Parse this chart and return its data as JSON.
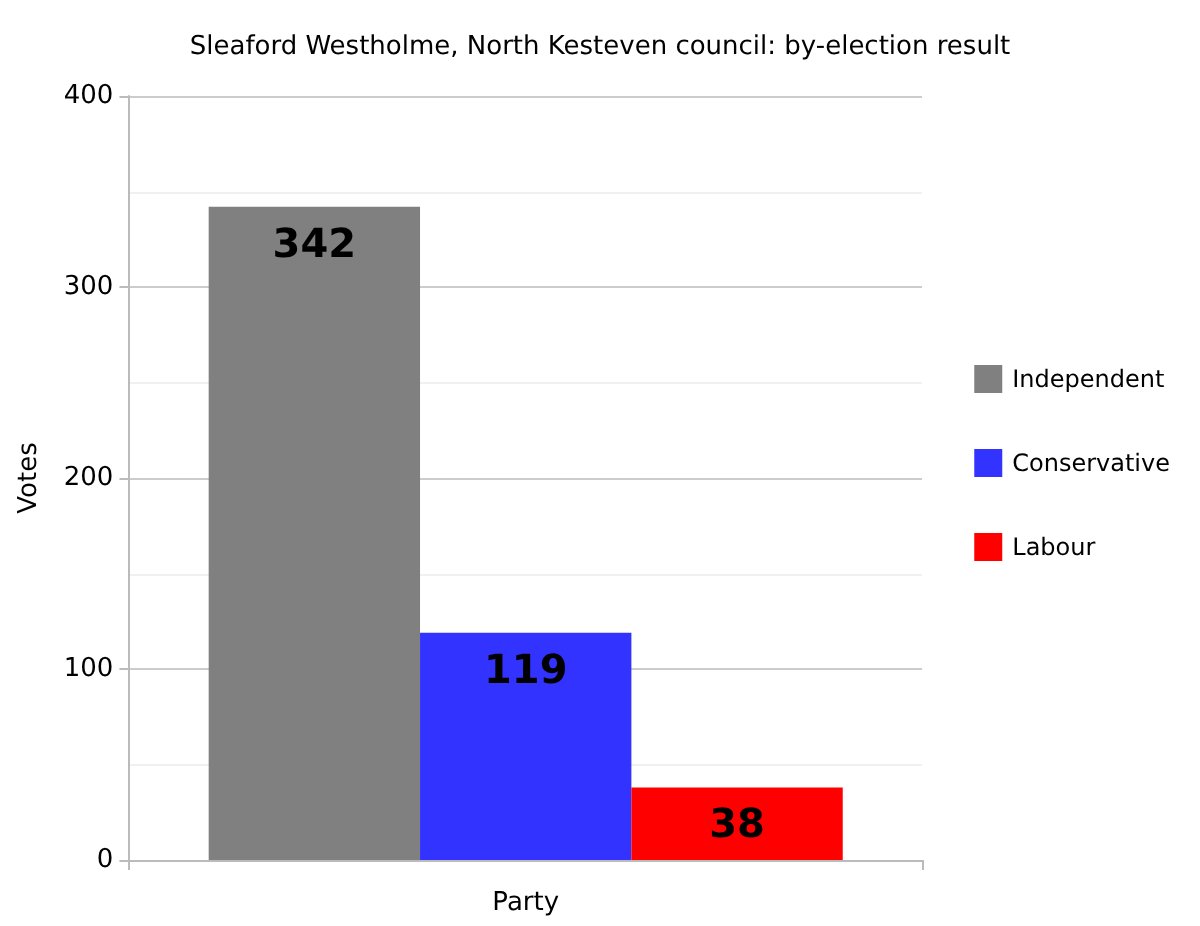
{
  "chart_data": {
    "type": "bar",
    "title": "Sleaford Westholme, North Kesteven council: by-election result",
    "xlabel": "Party",
    "ylabel": "Votes",
    "categories": [
      null
    ],
    "series": [
      {
        "name": "Independent",
        "color": "#808080",
        "values": [
          342
        ]
      },
      {
        "name": "Conservative",
        "color": "#3333ff",
        "values": [
          119
        ]
      },
      {
        "name": "Labour",
        "color": "#ff0000",
        "values": [
          38
        ]
      }
    ],
    "ylim": [
      0,
      400
    ],
    "yticks": [
      0,
      100,
      200,
      300,
      400
    ],
    "grid": "y",
    "legend": "right",
    "data_labels": true
  }
}
